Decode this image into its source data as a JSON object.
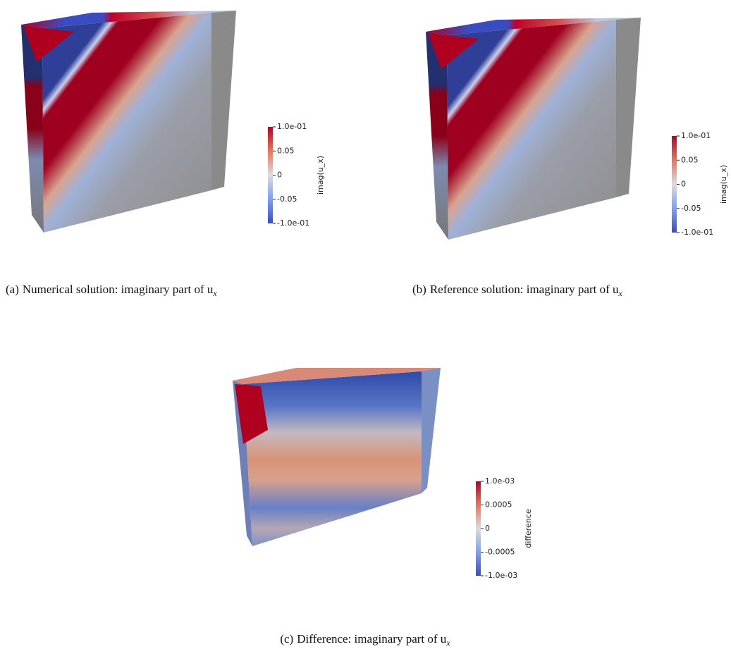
{
  "panels": [
    {
      "caption": {
        "label": "(a)",
        "text": "Numerical solution: imaginary part of u",
        "subscript": "x"
      },
      "colorbar": {
        "title": "imag(u_x)",
        "ticks": [
          "1.0e-01",
          "0.05",
          "0",
          "-0.05",
          "-1.0e-01"
        ]
      }
    },
    {
      "caption": {
        "label": "(b)",
        "text": "Reference solution: imaginary part of u",
        "subscript": "x"
      },
      "colorbar": {
        "title": "imag(u_x)",
        "ticks": [
          "1.0e-01",
          "0.05",
          "0",
          "-0.05",
          "-1.0e-01"
        ]
      }
    },
    {
      "caption": {
        "label": "(c)",
        "text": "Difference: imaginary part of u",
        "subscript": "x"
      },
      "colorbar": {
        "title": "difference",
        "ticks": [
          "1.0e-03",
          "0.0005",
          "0",
          "-0.0005",
          "-1.0e-03"
        ]
      }
    }
  ]
}
